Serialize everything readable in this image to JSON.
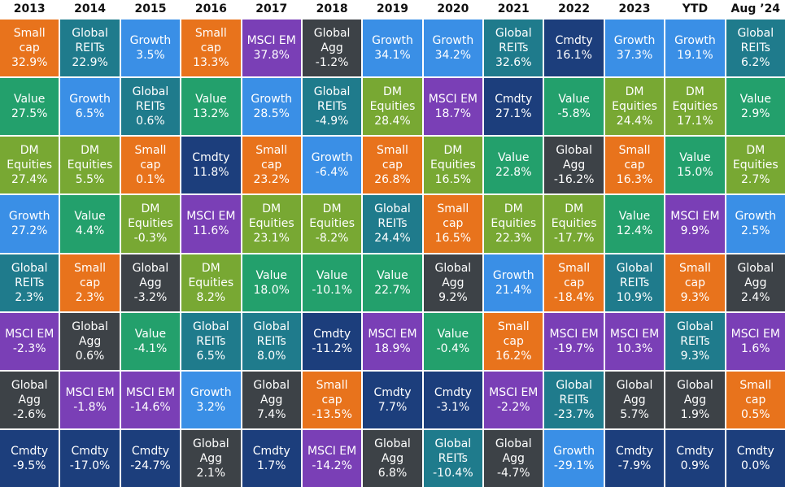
{
  "classes": [
    {
      "label": "Small\ncap",
      "color": "#e8731c"
    },
    {
      "label": "Global\nREITs",
      "color": "#1f7b8c"
    },
    {
      "label": "Growth",
      "color": "#3a8fe6"
    },
    {
      "label": "MSCI EM",
      "color": "#7a3fb6"
    },
    {
      "label": "Global\nAgg",
      "color": "#3d4247"
    },
    {
      "label": "Value",
      "color": "#23a06c"
    },
    {
      "label": "DM\nEquities",
      "color": "#78a833"
    },
    {
      "label": "Cmdty",
      "color": "#1c3e7c"
    }
  ],
  "columns": [
    {
      "year": "2013",
      "cells": [
        [
          0,
          "32.9%"
        ],
        [
          5,
          "27.5%"
        ],
        [
          6,
          "27.4%"
        ],
        [
          2,
          "27.2%"
        ],
        [
          1,
          "2.3%"
        ],
        [
          3,
          "-2.3%"
        ],
        [
          4,
          "-2.6%"
        ],
        [
          7,
          "-9.5%"
        ]
      ]
    },
    {
      "year": "2014",
      "cells": [
        [
          1,
          "22.9%"
        ],
        [
          2,
          "6.5%"
        ],
        [
          6,
          "5.5%"
        ],
        [
          5,
          "4.4%"
        ],
        [
          0,
          "2.3%"
        ],
        [
          4,
          "0.6%"
        ],
        [
          3,
          "-1.8%"
        ],
        [
          7,
          "-17.0%"
        ]
      ]
    },
    {
      "year": "2015",
      "cells": [
        [
          2,
          "3.5%"
        ],
        [
          1,
          "0.6%"
        ],
        [
          0,
          "0.1%"
        ],
        [
          6,
          "-0.3%"
        ],
        [
          4,
          "-3.2%"
        ],
        [
          5,
          "-4.1%"
        ],
        [
          3,
          "-14.6%"
        ],
        [
          7,
          "-24.7%"
        ]
      ]
    },
    {
      "year": "2016",
      "cells": [
        [
          0,
          "13.3%"
        ],
        [
          5,
          "13.2%"
        ],
        [
          7,
          "11.8%"
        ],
        [
          3,
          "11.6%"
        ],
        [
          6,
          "8.2%"
        ],
        [
          1,
          "6.5%"
        ],
        [
          2,
          "3.2%"
        ],
        [
          4,
          "2.1%"
        ]
      ]
    },
    {
      "year": "2017",
      "cells": [
        [
          3,
          "37.8%"
        ],
        [
          2,
          "28.5%"
        ],
        [
          0,
          "23.2%"
        ],
        [
          6,
          "23.1%"
        ],
        [
          5,
          "18.0%"
        ],
        [
          1,
          "8.0%"
        ],
        [
          4,
          "7.4%"
        ],
        [
          7,
          "1.7%"
        ]
      ]
    },
    {
      "year": "2018",
      "cells": [
        [
          4,
          "-1.2%"
        ],
        [
          1,
          "-4.9%"
        ],
        [
          2,
          "-6.4%"
        ],
        [
          6,
          "-8.2%"
        ],
        [
          5,
          "-10.1%"
        ],
        [
          7,
          "-11.2%"
        ],
        [
          0,
          "-13.5%"
        ],
        [
          3,
          "-14.2%"
        ]
      ]
    },
    {
      "year": "2019",
      "cells": [
        [
          2,
          "34.1%"
        ],
        [
          6,
          "28.4%"
        ],
        [
          0,
          "26.8%"
        ],
        [
          1,
          "24.4%"
        ],
        [
          5,
          "22.7%"
        ],
        [
          3,
          "18.9%"
        ],
        [
          7,
          "7.7%"
        ],
        [
          4,
          "6.8%"
        ]
      ]
    },
    {
      "year": "2020",
      "cells": [
        [
          2,
          "34.2%"
        ],
        [
          3,
          "18.7%"
        ],
        [
          6,
          "16.5%"
        ],
        [
          0,
          "16.5%"
        ],
        [
          4,
          "9.2%"
        ],
        [
          5,
          "-0.4%"
        ],
        [
          7,
          "-3.1%"
        ],
        [
          1,
          "-10.4%"
        ]
      ]
    },
    {
      "year": "2021",
      "cells": [
        [
          1,
          "32.6%"
        ],
        [
          7,
          "27.1%"
        ],
        [
          5,
          "22.8%"
        ],
        [
          6,
          "22.3%"
        ],
        [
          2,
          "21.4%"
        ],
        [
          0,
          "16.2%"
        ],
        [
          3,
          "-2.2%"
        ],
        [
          4,
          "-4.7%"
        ]
      ]
    },
    {
      "year": "2022",
      "cells": [
        [
          7,
          "16.1%"
        ],
        [
          5,
          "-5.8%"
        ],
        [
          4,
          "-16.2%"
        ],
        [
          6,
          "-17.7%"
        ],
        [
          0,
          "-18.4%"
        ],
        [
          3,
          "-19.7%"
        ],
        [
          1,
          "-23.7%"
        ],
        [
          2,
          "-29.1%"
        ]
      ]
    },
    {
      "year": "2023",
      "cells": [
        [
          2,
          "37.3%"
        ],
        [
          6,
          "24.4%"
        ],
        [
          0,
          "16.3%"
        ],
        [
          5,
          "12.4%"
        ],
        [
          1,
          "10.9%"
        ],
        [
          3,
          "10.3%"
        ],
        [
          4,
          "5.7%"
        ],
        [
          7,
          "-7.9%"
        ]
      ]
    },
    {
      "year": "YTD",
      "cells": [
        [
          2,
          "19.1%"
        ],
        [
          6,
          "17.1%"
        ],
        [
          5,
          "15.0%"
        ],
        [
          3,
          "9.9%"
        ],
        [
          0,
          "9.3%"
        ],
        [
          1,
          "9.3%"
        ],
        [
          4,
          "1.9%"
        ],
        [
          7,
          "0.9%"
        ]
      ]
    },
    {
      "year": "Aug ’24",
      "cells": [
        [
          1,
          "6.2%"
        ],
        [
          5,
          "2.9%"
        ],
        [
          6,
          "2.7%"
        ],
        [
          2,
          "2.5%"
        ],
        [
          4,
          "2.4%"
        ],
        [
          3,
          "1.6%"
        ],
        [
          0,
          "0.5%"
        ],
        [
          7,
          "0.0%"
        ]
      ]
    }
  ]
}
